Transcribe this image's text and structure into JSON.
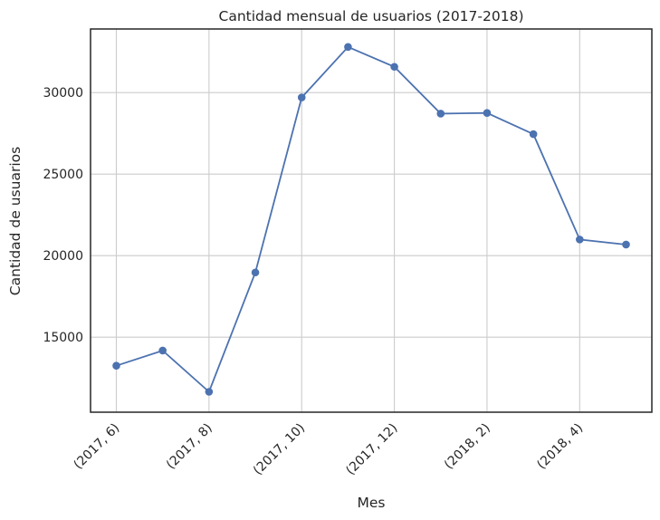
{
  "chart_data": {
    "type": "line",
    "title": "Cantidad mensual de usuarios (2017-2018)",
    "xlabel": "Mes",
    "ylabel": "Cantidad de usuarios",
    "x": [
      "(2017, 6)",
      "(2017, 7)",
      "(2017, 8)",
      "(2017, 9)",
      "(2017, 10)",
      "(2017, 11)",
      "(2017, 12)",
      "(2018, 1)",
      "(2018, 2)",
      "(2018, 3)",
      "(2018, 4)",
      "(2018, 5)"
    ],
    "x_tick_labels_shown": [
      "(2017, 6)",
      "(2017, 8)",
      "(2017, 10)",
      "(2017, 12)",
      "(2018, 2)",
      "(2018, 4)"
    ],
    "series": [
      {
        "values": [
          13250,
          14180,
          11650,
          18970,
          29700,
          32800,
          31580,
          28710,
          28750,
          27450,
          20990,
          20680
        ]
      }
    ],
    "y_ticks": [
      15000,
      20000,
      25000,
      30000
    ],
    "ylim": [
      10400,
      33900
    ],
    "grid": true,
    "color": "#4c72b0",
    "marker": "circle"
  }
}
